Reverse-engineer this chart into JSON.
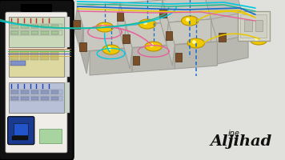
{
  "bg_color": "#e0e0dc",
  "phone_body": "#111111",
  "phone_notch": "#000000",
  "phone_screen_bg": "#f0ede8",
  "panel1_color": "#c8d8b8",
  "panel2_color": "#dcd8a0",
  "panel3_color": "#b8c0d8",
  "breaker_color": "#1a3a90",
  "red_wire_color": "#cc2222",
  "blue_wire_color": "#2244bb",
  "panel_border": "#888880",
  "room_floor1": "#d8d8d0",
  "room_floor2": "#ccccC4",
  "room_wall_front": "#b8b8b0",
  "room_wall_side": "#c4c4bc",
  "room_outline": "#a0a098",
  "lamp_fill": "#f0c800",
  "lamp_edge": "#b89000",
  "lamp_hi": "#fff8a0",
  "switch_fill": "#7a4e28",
  "switch_edge": "#4a2e10",
  "wire_cyan": "#00c8e0",
  "wire_pink": "#e8609a",
  "wire_yellow": "#e8c800",
  "wire_blue": "#1a6ac8",
  "wire_green": "#20b890",
  "wire_lw": 1.1,
  "socket_fill": "#d8d8cc",
  "socket_border": "#a0a090",
  "wm_color": "#111111"
}
